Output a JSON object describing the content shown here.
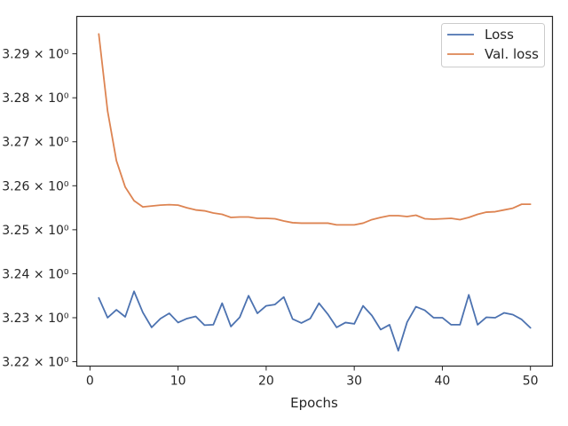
{
  "chart_data": {
    "type": "line",
    "title": "",
    "xlabel": "Epochs",
    "ylabel": "",
    "xlim": [
      -1.5,
      52.5
    ],
    "ylim": [
      3.219,
      3.2985
    ],
    "xticks": [
      0,
      10,
      20,
      30,
      40,
      50
    ],
    "yticks": [
      {
        "value": 3.22,
        "label": "3.22 × 10⁰"
      },
      {
        "value": 3.23,
        "label": "3.23 × 10⁰"
      },
      {
        "value": 3.24,
        "label": "3.24 × 10⁰"
      },
      {
        "value": 3.25,
        "label": "3.25 × 10⁰"
      },
      {
        "value": 3.26,
        "label": "3.26 × 10⁰"
      },
      {
        "value": 3.27,
        "label": "3.27 × 10⁰"
      },
      {
        "value": 3.28,
        "label": "3.28 × 10⁰"
      },
      {
        "value": 3.29,
        "label": "3.29 × 10⁰"
      }
    ],
    "grid": false,
    "legend_position": "top-right",
    "x": [
      1,
      2,
      3,
      4,
      5,
      6,
      7,
      8,
      9,
      10,
      11,
      12,
      13,
      14,
      15,
      16,
      17,
      18,
      19,
      20,
      21,
      22,
      23,
      24,
      25,
      26,
      27,
      28,
      29,
      30,
      31,
      32,
      33,
      34,
      35,
      36,
      37,
      38,
      39,
      40,
      41,
      42,
      43,
      44,
      45,
      46,
      47,
      48,
      49,
      50
    ],
    "series": [
      {
        "name": "Loss",
        "color": "#4c72b0",
        "values": [
          3.2345,
          3.23,
          3.2318,
          3.2302,
          3.236,
          3.2312,
          3.2278,
          3.2298,
          3.231,
          3.2289,
          3.2298,
          3.2303,
          3.2283,
          3.2284,
          3.2333,
          3.228,
          3.2301,
          3.235,
          3.231,
          3.2327,
          3.233,
          3.2347,
          3.2297,
          3.2288,
          3.2298,
          3.2333,
          3.2308,
          3.2278,
          3.2289,
          3.2286,
          3.2327,
          3.2305,
          3.2273,
          3.2284,
          3.2225,
          3.229,
          3.2325,
          3.2317,
          3.23,
          3.23,
          3.2284,
          3.2284,
          3.2352,
          3.2284,
          3.2301,
          3.23,
          3.2311,
          3.2307,
          3.2296,
          3.2277
        ]
      },
      {
        "name": "Val. loss",
        "color": "#dd8452",
        "values": [
          3.2945,
          3.277,
          3.2657,
          3.2597,
          3.2566,
          3.2552,
          3.2554,
          3.2556,
          3.2557,
          3.2556,
          3.255,
          3.2545,
          3.2543,
          3.2538,
          3.2535,
          3.2528,
          3.2529,
          3.2529,
          3.2526,
          3.2526,
          3.2525,
          3.252,
          3.2516,
          3.2515,
          3.2515,
          3.2515,
          3.2515,
          3.2511,
          3.2511,
          3.2511,
          3.2515,
          3.2523,
          3.2528,
          3.2532,
          3.2532,
          3.253,
          3.2533,
          3.2525,
          3.2524,
          3.2525,
          3.2526,
          3.2523,
          3.2528,
          3.2535,
          3.254,
          3.2541,
          3.2545,
          3.2549,
          3.2558,
          3.2558
        ]
      }
    ]
  }
}
